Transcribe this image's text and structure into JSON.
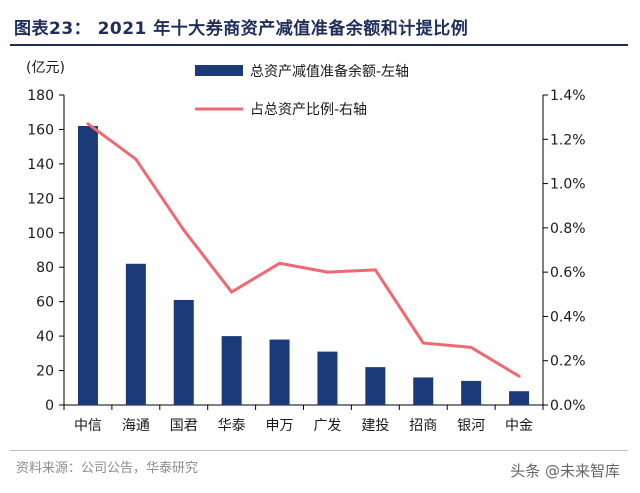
{
  "header": {
    "title": "图表23：  2021 年十大券商资产减值准备余额和计提比例"
  },
  "footer": {
    "source": "资料来源：公司公告，华泰研究",
    "watermark": "头条 @未来智库"
  },
  "chart_data": {
    "type": "bar",
    "categories": [
      "中信",
      "海通",
      "国君",
      "华泰",
      "申万",
      "广发",
      "建投",
      "招商",
      "银河",
      "中金"
    ],
    "left_axis_unit": "(亿元)",
    "series": [
      {
        "name": "总资产减值准备余额-左轴",
        "type": "bar",
        "axis": "left",
        "color": "#1b3a7a",
        "values": [
          162,
          82,
          61,
          40,
          38,
          31,
          22,
          16,
          14,
          8
        ]
      },
      {
        "name": "占总资产比例-右轴",
        "type": "line",
        "axis": "right",
        "color": "#ee6a73",
        "values": [
          1.27,
          1.11,
          0.79,
          0.51,
          0.64,
          0.6,
          0.61,
          0.28,
          0.26,
          0.13
        ]
      }
    ],
    "y_left": {
      "min": 0,
      "max": 180,
      "step": 20,
      "ticks": [
        "0",
        "20",
        "40",
        "60",
        "80",
        "100",
        "120",
        "140",
        "160",
        "180"
      ]
    },
    "y_right": {
      "min": 0,
      "max": 1.4,
      "step": 0.2,
      "ticks": [
        "0.0%",
        "0.2%",
        "0.4%",
        "0.6%",
        "0.8%",
        "1.0%",
        "1.2%",
        "1.4%"
      ]
    },
    "grid": false,
    "legend_position": "top-center"
  }
}
